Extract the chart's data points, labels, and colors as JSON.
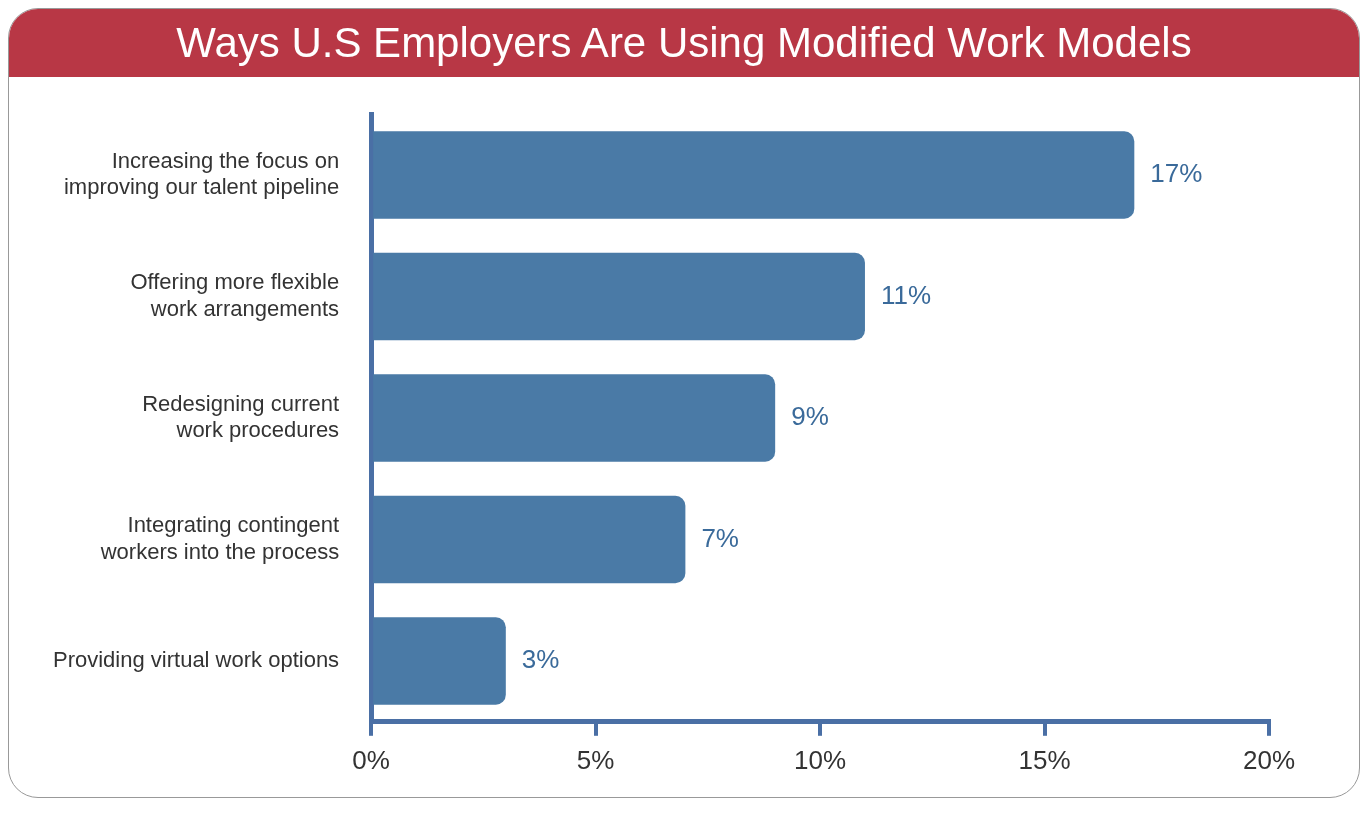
{
  "chart_data": {
    "type": "bar",
    "orientation": "horizontal",
    "title": "Ways U.S Employers Are Using Modified Work Models",
    "categories": [
      "Increasing the focus on improving our talent pipeline",
      "Offering more flexible work arrangements",
      "Redesigning current work procedures",
      "Integrating contingent workers into the process",
      "Providing virtual work options"
    ],
    "values": [
      17,
      11,
      9,
      7,
      3
    ],
    "value_labels": [
      "17%",
      "11%",
      "9%",
      "7%",
      "3%"
    ],
    "color": "#4a7aa6",
    "xlim": [
      0,
      20
    ],
    "xticks": [
      {
        "value": 0,
        "label": "0%"
      },
      {
        "value": 5,
        "label": "5%"
      },
      {
        "value": 10,
        "label": "10%"
      },
      {
        "value": 15,
        "label": "15%"
      },
      {
        "value": 20,
        "label": "20%"
      }
    ],
    "grid": false,
    "legend": false
  }
}
